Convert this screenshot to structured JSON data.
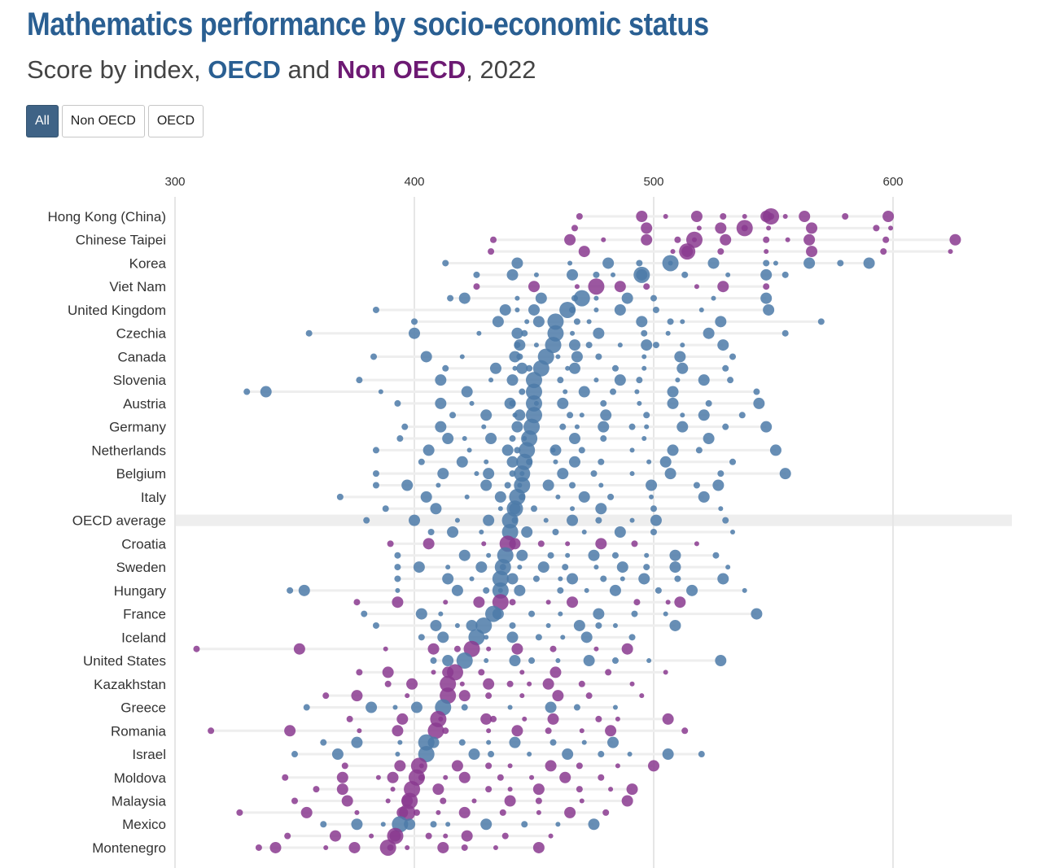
{
  "header": {
    "title": "Mathematics performance by socio-economic status",
    "subtitle_prefix": "Score by index, ",
    "subtitle_oecd": "OECD",
    "subtitle_and": " and ",
    "subtitle_nonoecd": "Non OECD",
    "subtitle_suffix": ", 2022"
  },
  "filters": {
    "all": "All",
    "nonoecd": "Non OECD",
    "oecd": "OECD",
    "selected": "All"
  },
  "colors": {
    "oecd": "#4c7aa8",
    "nonoecd": "#8a3a8f",
    "highlight": "#eeeeee",
    "grid": "#e6e6e6"
  },
  "chart_data": {
    "type": "scatter",
    "title": "Mathematics performance by socio-economic status",
    "subtitle": "Score by index, OECD and Non OECD, 2022",
    "xlim": [
      300,
      640
    ],
    "xticks": [
      300,
      400,
      500,
      600
    ],
    "xaxis_position": "top",
    "highlight_row": "OECD average",
    "rows": [
      {
        "country": "Hong Kong (China)",
        "group": "nonoecd",
        "labeled": true,
        "values": [
          469,
          495,
          505,
          518,
          529,
          538,
          547,
          549,
          555,
          563,
          580,
          598
        ],
        "big": 549
      },
      {
        "country": "",
        "group": "nonoecd",
        "labeled": false,
        "values": [
          467,
          497,
          519,
          528,
          538,
          548,
          566,
          593,
          599
        ],
        "big": 538
      },
      {
        "country": "Chinese Taipei",
        "group": "nonoecd",
        "labeled": true,
        "values": [
          433,
          465,
          479,
          497,
          510,
          517,
          530,
          547,
          556,
          565,
          597,
          626
        ],
        "big": 517
      },
      {
        "country": "",
        "group": "nonoecd",
        "labeled": false,
        "values": [
          432,
          471,
          508,
          514,
          528,
          547,
          566,
          596,
          624
        ],
        "big": 514
      },
      {
        "country": "Korea",
        "group": "oecd",
        "labeled": true,
        "values": [
          413,
          443,
          465,
          481,
          494,
          507,
          525,
          547,
          551,
          565,
          578,
          590
        ],
        "big": 507
      },
      {
        "country": "",
        "group": "oecd",
        "labeled": false,
        "values": [
          426,
          441,
          451,
          466,
          476,
          483,
          495,
          513,
          531,
          547,
          555
        ],
        "big": 495
      },
      {
        "country": "Viet Nam",
        "group": "nonoecd",
        "labeled": true,
        "values": [
          426,
          450,
          468,
          486,
          497,
          518,
          529,
          547
        ],
        "big": 476
      },
      {
        "country": "",
        "group": "oecd",
        "labeled": false,
        "values": [
          415,
          421,
          443,
          453,
          467,
          476,
          489,
          500,
          525,
          547
        ],
        "big": 470
      },
      {
        "country": "United Kingdom",
        "group": "oecd",
        "labeled": true,
        "values": [
          384,
          438,
          443,
          450,
          466,
          476,
          486,
          501,
          520,
          548
        ],
        "big": 464
      },
      {
        "country": "",
        "group": "oecd",
        "labeled": false,
        "values": [
          400,
          435,
          447,
          452,
          468,
          473,
          495,
          507,
          512,
          528,
          570
        ],
        "big": 459
      },
      {
        "country": "Czechia",
        "group": "oecd",
        "labeled": true,
        "values": [
          356,
          400,
          427,
          443,
          446,
          466,
          477,
          496,
          506,
          523,
          555
        ],
        "big": 459
      },
      {
        "country": "",
        "group": "oecd",
        "labeled": false,
        "values": [
          443,
          444,
          451,
          467,
          473,
          486,
          497,
          501,
          512,
          529
        ],
        "big": 458
      },
      {
        "country": "Canada",
        "group": "oecd",
        "labeled": true,
        "values": [
          383,
          405,
          420,
          442,
          444,
          460,
          468,
          477,
          496,
          511,
          533
        ],
        "big": 455
      },
      {
        "country": "",
        "group": "oecd",
        "labeled": false,
        "values": [
          413,
          434,
          442,
          445,
          448,
          464,
          467,
          484,
          496,
          512,
          530
        ],
        "big": 453
      },
      {
        "country": "Slovenia",
        "group": "oecd",
        "labeled": true,
        "values": [
          377,
          411,
          432,
          441,
          461,
          476,
          486,
          494,
          510,
          521,
          532
        ],
        "big": 450
      },
      {
        "country": "",
        "group": "oecd",
        "labeled": false,
        "values": [
          330,
          338,
          386,
          422,
          445,
          463,
          471,
          483,
          493,
          508,
          543
        ],
        "big": 450
      },
      {
        "country": "Austria",
        "group": "oecd",
        "labeled": true,
        "values": [
          393,
          411,
          424,
          440,
          441,
          451,
          462,
          479,
          494,
          508,
          523,
          544
        ],
        "big": 450
      },
      {
        "country": "",
        "group": "oecd",
        "labeled": false,
        "values": [
          416,
          430,
          442,
          444,
          465,
          470,
          480,
          497,
          512,
          521,
          537
        ],
        "big": 450
      },
      {
        "country": "Germany",
        "group": "oecd",
        "labeled": true,
        "values": [
          396,
          411,
          429,
          443,
          462,
          468,
          479,
          491,
          497,
          512,
          530,
          547
        ],
        "big": 449
      },
      {
        "country": "",
        "group": "oecd",
        "labeled": false,
        "values": [
          394,
          414,
          421,
          432,
          441,
          446,
          467,
          479,
          496,
          523
        ],
        "big": 448
      },
      {
        "country": "Netherlands",
        "group": "oecd",
        "labeled": true,
        "values": [
          384,
          406,
          423,
          439,
          443,
          458,
          459,
          470,
          491,
          508,
          519,
          551
        ],
        "big": 447
      },
      {
        "country": "",
        "group": "oecd",
        "labeled": false,
        "values": [
          403,
          420,
          430,
          441,
          448,
          459,
          467,
          478,
          498,
          505,
          533
        ],
        "big": 446
      },
      {
        "country": "Belgium",
        "group": "oecd",
        "labeled": true,
        "values": [
          384,
          412,
          426,
          431,
          441,
          445,
          462,
          475,
          491,
          507,
          528,
          555
        ],
        "big": 445
      },
      {
        "country": "",
        "group": "oecd",
        "labeled": false,
        "values": [
          384,
          397,
          410,
          430,
          439,
          444,
          456,
          466,
          478,
          499,
          518,
          527
        ],
        "big": 445
      },
      {
        "country": "Italy",
        "group": "oecd",
        "labeled": true,
        "values": [
          369,
          405,
          422,
          436,
          445,
          460,
          471,
          482,
          499,
          521
        ],
        "big": 443
      },
      {
        "country": "",
        "group": "oecd",
        "labeled": false,
        "values": [
          388,
          409,
          436,
          442,
          450,
          466,
          478,
          500,
          528
        ],
        "big": 442
      },
      {
        "country": "OECD average",
        "group": "oecd",
        "labeled": true,
        "values": [
          380,
          400,
          418,
          431,
          442,
          455,
          466,
          477,
          491,
          501,
          530
        ],
        "big": 440
      },
      {
        "country": "",
        "group": "oecd",
        "labeled": false,
        "values": [
          407,
          416,
          428,
          447,
          459,
          471,
          486,
          500,
          533
        ],
        "big": 440
      },
      {
        "country": "Croatia",
        "group": "nonoecd",
        "labeled": true,
        "values": [
          390,
          406,
          429,
          442,
          453,
          464,
          478,
          492,
          518
        ],
        "big": 439
      },
      {
        "country": "",
        "group": "oecd",
        "labeled": false,
        "values": [
          393,
          421,
          431,
          445,
          457,
          464,
          475,
          484,
          497,
          509,
          526
        ],
        "big": 438
      },
      {
        "country": "Sweden",
        "group": "oecd",
        "labeled": true,
        "values": [
          393,
          402,
          414,
          428,
          437,
          444,
          454,
          463,
          476,
          487,
          497,
          509,
          531
        ],
        "big": 437
      },
      {
        "country": "",
        "group": "oecd",
        "labeled": false,
        "values": [
          393,
          414,
          424,
          441,
          451,
          461,
          466,
          479,
          487,
          496,
          510,
          529
        ],
        "big": 436
      },
      {
        "country": "Hungary",
        "group": "oecd",
        "labeled": true,
        "values": [
          348,
          354,
          393,
          418,
          430,
          436,
          444,
          461,
          472,
          484,
          502,
          516,
          538
        ],
        "big": 436
      },
      {
        "country": "",
        "group": "nonoecd",
        "labeled": false,
        "values": [
          376,
          393,
          413,
          427,
          441,
          456,
          466,
          493,
          506,
          511
        ],
        "big": 436
      },
      {
        "country": "France",
        "group": "oecd",
        "labeled": true,
        "values": [
          379,
          403,
          411,
          435,
          449,
          461,
          477,
          492,
          505,
          543
        ],
        "big": 433
      },
      {
        "country": "",
        "group": "oecd",
        "labeled": false,
        "values": [
          384,
          409,
          418,
          424,
          441,
          456,
          469,
          477,
          484,
          509
        ],
        "big": 429
      },
      {
        "country": "Iceland",
        "group": "oecd",
        "labeled": true,
        "values": [
          403,
          412,
          430,
          441,
          452,
          462,
          472,
          491
        ],
        "big": 426
      },
      {
        "country": "",
        "group": "nonoecd",
        "labeled": false,
        "values": [
          309,
          352,
          388,
          408,
          418,
          431,
          443,
          458,
          476,
          489
        ],
        "big": 424
      },
      {
        "country": "United States",
        "group": "oecd",
        "labeled": true,
        "values": [
          408,
          414,
          430,
          442,
          449,
          460,
          473,
          484,
          498,
          528
        ],
        "big": 421
      },
      {
        "country": "",
        "group": "nonoecd",
        "labeled": false,
        "values": [
          377,
          389,
          408,
          414,
          428,
          445,
          459,
          481,
          505
        ],
        "big": 417
      },
      {
        "country": "Kazakhstan",
        "group": "nonoecd",
        "labeled": true,
        "values": [
          389,
          399,
          420,
          431,
          440,
          448,
          456,
          470,
          491
        ],
        "big": 414
      },
      {
        "country": "",
        "group": "nonoecd",
        "labeled": false,
        "values": [
          363,
          376,
          397,
          421,
          431,
          445,
          460,
          473,
          495
        ],
        "big": 414
      },
      {
        "country": "Greece",
        "group": "oecd",
        "labeled": true,
        "values": [
          355,
          382,
          392,
          401,
          421,
          440,
          457,
          468,
          484
        ],
        "big": 412
      },
      {
        "country": "",
        "group": "nonoecd",
        "labeled": false,
        "values": [
          373,
          395,
          411,
          430,
          433,
          446,
          458,
          477,
          485,
          506
        ],
        "big": 410
      },
      {
        "country": "Romania",
        "group": "nonoecd",
        "labeled": true,
        "values": [
          315,
          348,
          377,
          393,
          413,
          431,
          443,
          456,
          470,
          482,
          513
        ],
        "big": 409
      },
      {
        "country": "",
        "group": "oecd",
        "labeled": false,
        "values": [
          362,
          376,
          394,
          408,
          420,
          431,
          442,
          458,
          471,
          483
        ],
        "big": 405
      },
      {
        "country": "Israel",
        "group": "oecd",
        "labeled": true,
        "values": [
          350,
          368,
          393,
          425,
          432,
          448,
          464,
          478,
          490,
          506,
          520
        ],
        "big": 405
      },
      {
        "country": "",
        "group": "nonoecd",
        "labeled": false,
        "values": [
          371,
          394,
          403,
          418,
          431,
          440,
          457,
          469,
          485,
          500
        ],
        "big": 402
      },
      {
        "country": "Moldova",
        "group": "nonoecd",
        "labeled": true,
        "values": [
          346,
          370,
          385,
          391,
          403,
          413,
          421,
          436,
          449,
          463,
          478
        ],
        "big": 401
      },
      {
        "country": "",
        "group": "nonoecd",
        "labeled": false,
        "values": [
          359,
          370,
          391,
          410,
          431,
          440,
          452,
          469,
          482,
          491
        ],
        "big": 399
      },
      {
        "country": "Malaysia",
        "group": "nonoecd",
        "labeled": true,
        "values": [
          350,
          372,
          389,
          397,
          412,
          425,
          440,
          452,
          470,
          489
        ],
        "big": 398
      },
      {
        "country": "",
        "group": "nonoecd",
        "labeled": false,
        "values": [
          327,
          355,
          376,
          395,
          401,
          410,
          421,
          437,
          452,
          465,
          480
        ],
        "big": 397
      },
      {
        "country": "Mexico",
        "group": "oecd",
        "labeled": true,
        "values": [
          362,
          376,
          387,
          398,
          408,
          414,
          430,
          446,
          460,
          475
        ],
        "big": 394
      },
      {
        "country": "",
        "group": "nonoecd",
        "labeled": false,
        "values": [
          347,
          367,
          382,
          392,
          406,
          413,
          422,
          438,
          457
        ],
        "big": 392
      },
      {
        "country": "Montenegro",
        "group": "nonoecd",
        "labeled": true,
        "values": [
          335,
          342,
          363,
          375,
          390,
          397,
          412,
          421,
          434,
          452
        ],
        "big": 389
      }
    ]
  }
}
